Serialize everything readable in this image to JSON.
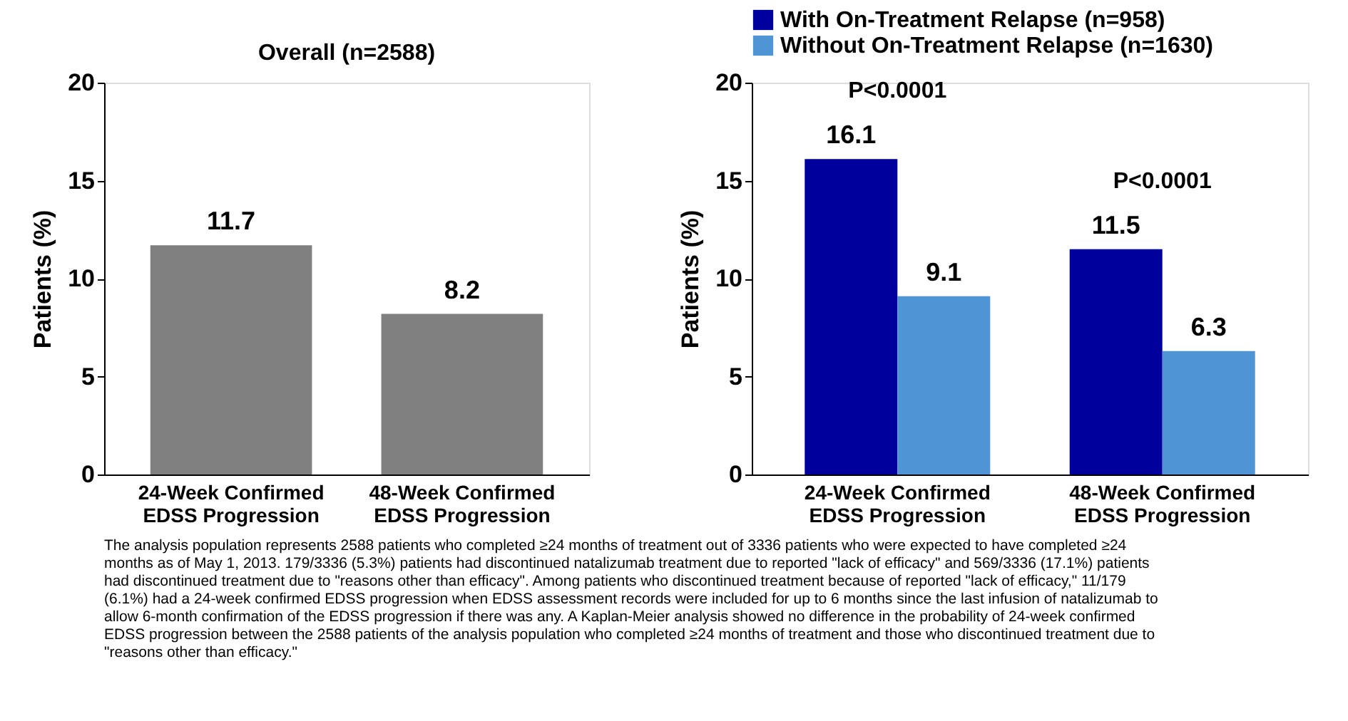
{
  "chart_data": [
    {
      "type": "bar",
      "title": "Overall (n=2588)",
      "ylabel": "Patients (%)",
      "categories": [
        "24-Week Confirmed\nEDSS Progression",
        "48-Week Confirmed\nEDSS Progression"
      ],
      "series": [
        {
          "color": "#808080",
          "values": [
            11.7,
            8.2
          ]
        }
      ],
      "ylim": [
        0,
        20
      ],
      "yticks": [
        0,
        5,
        10,
        15,
        20
      ],
      "grid": false,
      "data_labels": true,
      "annotations": [
        "The analysis population represents 2588 patients who completed ≥24 months of treatment out of 3336 patients who were expected to have completed ≥24\nmonths as of May 1, 2013. 179/3336 (5.3%) patients had discontinued natalizumab treatment due to reported \"lack of efficacy\" and 569/3336 (17.1%) patients\nhad discontinued treatment due to \"reasons other than efficacy\". Among patients who discontinued treatment because of reported \"lack of efficacy,\" 11/179\n(6.1%) had a 24-week confirmed EDSS progression when EDSS assessment records were included for up to 6 months since the last infusion of natalizumab to\nallow 6-month confirmation of the EDSS progression if there was any. A Kaplan-Meier analysis showed no difference in the probability of 24-week confirmed\nEDSS progression between the 2588 patients of the analysis population who completed ≥24 months of treatment and those who discontinued treatment due to\n\"reasons other than efficacy.\""
      ]
    },
    {
      "type": "bar",
      "ylabel": "Patients (%)",
      "categories": [
        "24-Week Confirmed\nEDSS Progression",
        "48-Week Confirmed\nEDSS Progression"
      ],
      "series": [
        {
          "name": "With On-Treatment Relapse (n=958)",
          "color": "#00009c",
          "values": [
            16.1,
            11.5
          ]
        },
        {
          "name": "Without On-Treatment Relapse (n=1630)",
          "color": "#4f94d4",
          "values": [
            9.1,
            6.3
          ]
        }
      ],
      "ylim": [
        0,
        20
      ],
      "yticks": [
        0,
        5,
        10,
        15,
        20
      ],
      "grid": false,
      "data_labels": true,
      "legend": "top",
      "annotations": [
        "P<0.0001",
        "P<0.0001"
      ]
    }
  ]
}
